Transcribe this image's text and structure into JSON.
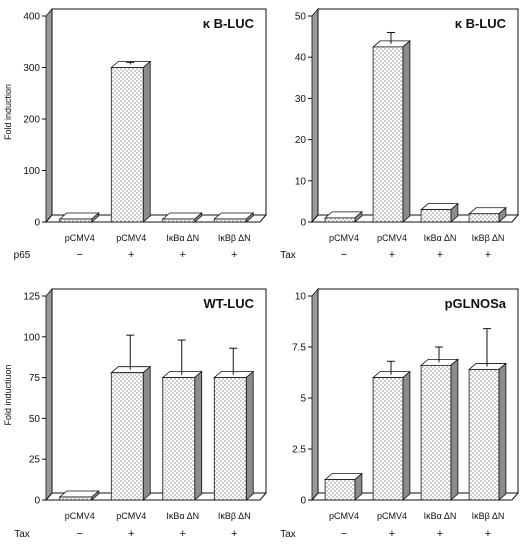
{
  "figure": {
    "ylabel_top": "Fold induction",
    "ylabel_bottom": "Fold inductiuon"
  },
  "chart_data": [
    {
      "type": "bar",
      "title": "κ B-LUC",
      "categories": [
        "pCMV4",
        "pCMV4",
        "IκBα ΔN",
        "IκBβ ΔN"
      ],
      "values": [
        0,
        300,
        0,
        0
      ],
      "errors": [
        0,
        10,
        0,
        0
      ],
      "ylim": [
        0,
        400
      ],
      "yticks": [
        0,
        100,
        200,
        300,
        400
      ],
      "ytick_labels": [
        "0",
        "100",
        "200",
        "300",
        "400"
      ],
      "ylabel": "Fold induction",
      "treatment_label": "p65",
      "treatment_signs": [
        "−",
        "+",
        "+",
        "+"
      ]
    },
    {
      "type": "bar",
      "title": "κ B-LUC",
      "categories": [
        "pCMV4",
        "pCMV4",
        "IκBα ΔN",
        "IκBβ ΔN"
      ],
      "values": [
        1,
        42.5,
        3,
        2
      ],
      "errors": [
        0,
        3.5,
        0,
        0
      ],
      "ylim": [
        0,
        50
      ],
      "yticks": [
        0,
        10,
        20,
        30,
        40,
        50
      ],
      "ytick_labels": [
        "0",
        "10",
        "20",
        "30",
        "40",
        "50"
      ],
      "ylabel": "",
      "treatment_label": "Tax",
      "treatment_signs": [
        "−",
        "+",
        "+",
        "+"
      ]
    },
    {
      "type": "bar",
      "title": "WT-LUC",
      "categories": [
        "pCMV4",
        "pCMV4",
        "IκBα ΔN",
        "IκBβ ΔN"
      ],
      "values": [
        1,
        78,
        75,
        75
      ],
      "errors": [
        0,
        23,
        23,
        18
      ],
      "ylim": [
        0,
        125
      ],
      "yticks": [
        0,
        25,
        50,
        75,
        100,
        125
      ],
      "ytick_labels": [
        "0",
        "25",
        "50",
        "75",
        "100",
        "125"
      ],
      "ylabel": "Fold inductiuon",
      "treatment_label": "Tax",
      "treatment_signs": [
        "−",
        "+",
        "+",
        "+"
      ]
    },
    {
      "type": "bar",
      "title": "pGLNOSa",
      "categories": [
        "pCMV4",
        "pCMV4",
        "IκBα ΔN",
        "IκBβ ΔN"
      ],
      "values": [
        1,
        6,
        6.6,
        6.4
      ],
      "errors": [
        0,
        0.8,
        0.9,
        2
      ],
      "ylim": [
        0,
        10
      ],
      "yticks": [
        0,
        2.5,
        5,
        7.5,
        10
      ],
      "ytick_labels": [
        "0",
        "2.5",
        "5",
        "7.5",
        "10"
      ],
      "ylabel": "",
      "treatment_label": "Tax",
      "treatment_signs": [
        "−",
        "+",
        "+",
        "+"
      ]
    }
  ]
}
